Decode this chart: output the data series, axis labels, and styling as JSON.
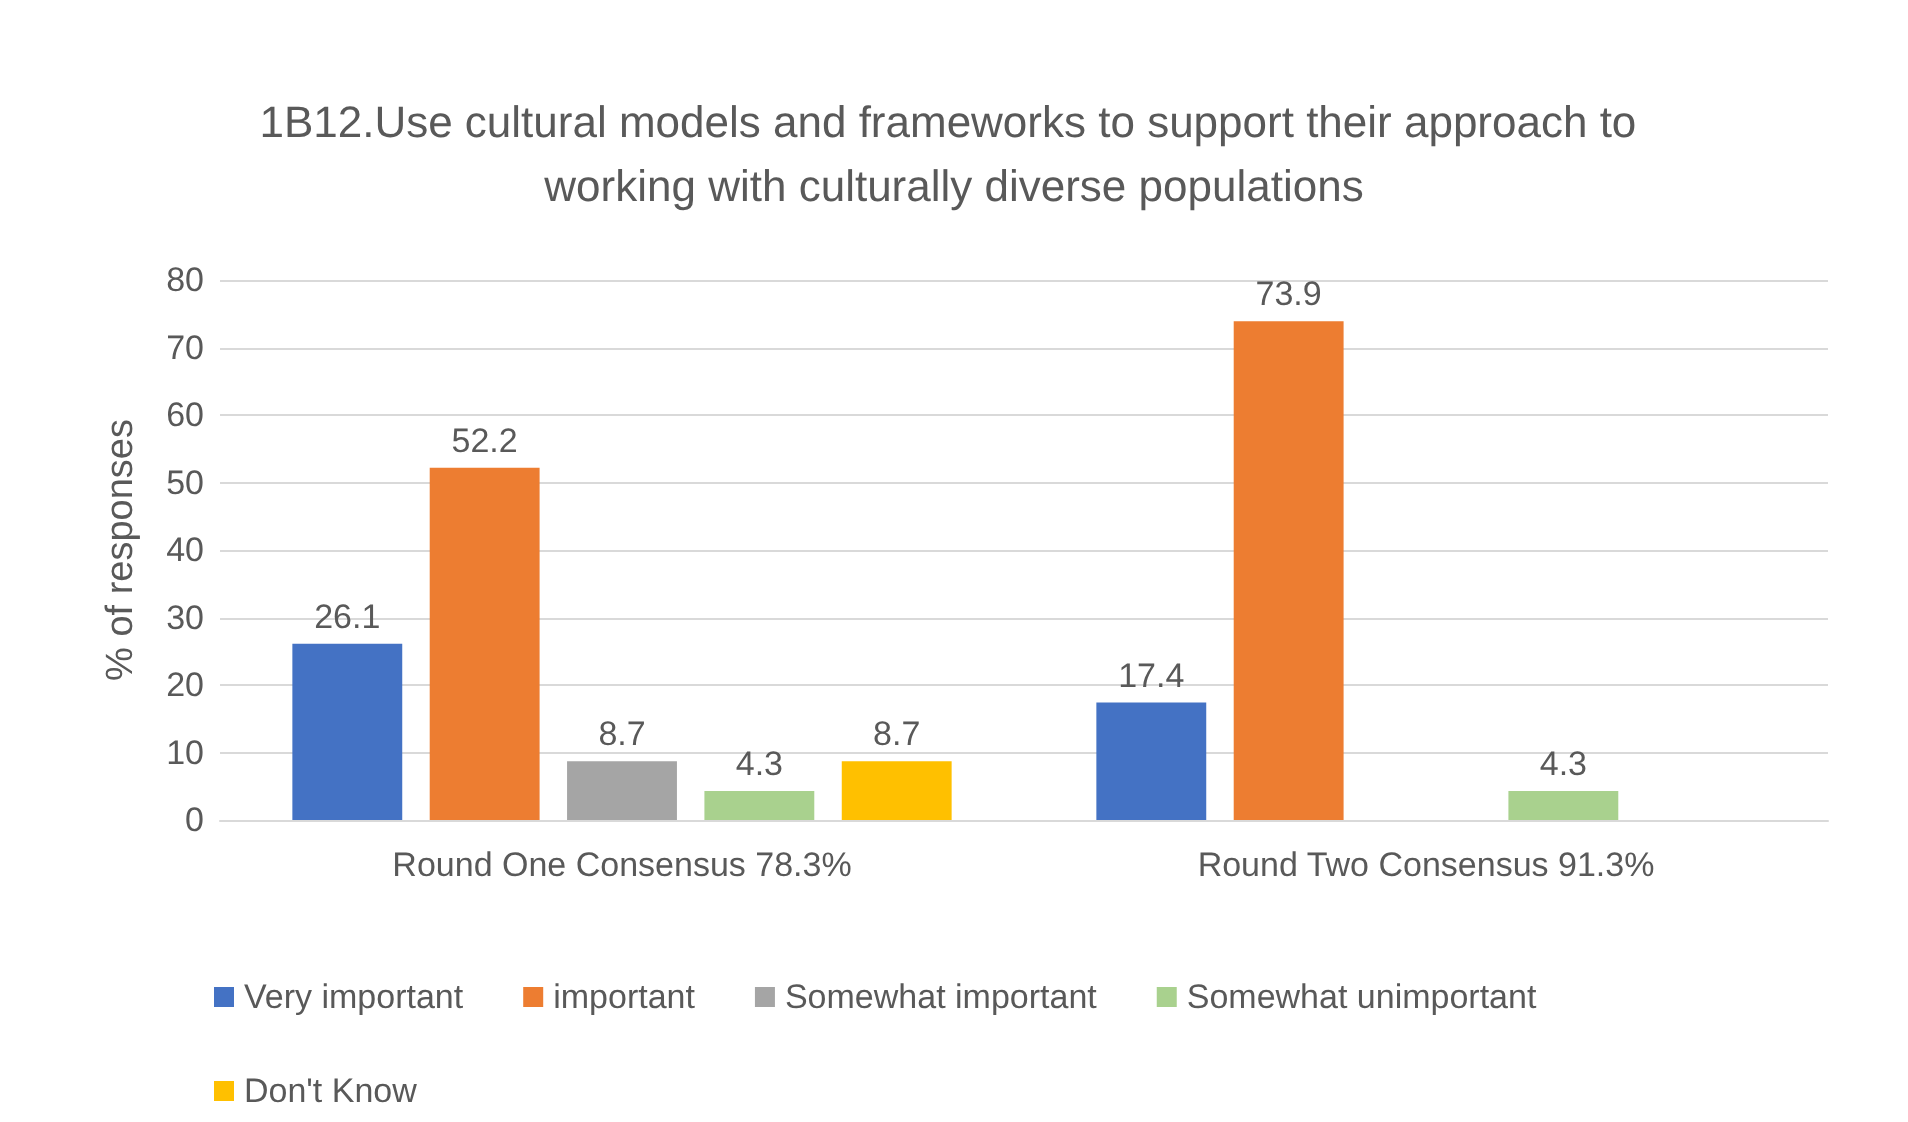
{
  "chart_data": {
    "type": "bar",
    "title": "1B12.Use cultural models and frameworks to support their approach to working with culturally diverse populations",
    "ylabel": "% of responses",
    "categories": [
      "Round One Consensus 78.3%",
      "Round Two Consensus 91.3%"
    ],
    "series": [
      {
        "name": "Very important",
        "color": "#4472c4",
        "values": [
          26.1,
          17.4
        ]
      },
      {
        "name": "important",
        "color": "#ed7d31",
        "values": [
          52.2,
          73.9
        ]
      },
      {
        "name": "Somewhat important",
        "color": "#a5a5a5",
        "values": [
          8.7,
          null
        ]
      },
      {
        "name": "Somewhat unimportant",
        "color": "#a9d18e",
        "values": [
          4.3,
          4.3
        ]
      },
      {
        "name": "Don't Know",
        "color": "#ffc000",
        "values": [
          8.7,
          null
        ]
      }
    ],
    "ylim": [
      0,
      80
    ],
    "yticks": [
      0,
      10,
      20,
      30,
      40,
      50,
      60,
      70,
      80
    ],
    "grid": "y",
    "legend": "bottom",
    "data_labels": true
  }
}
